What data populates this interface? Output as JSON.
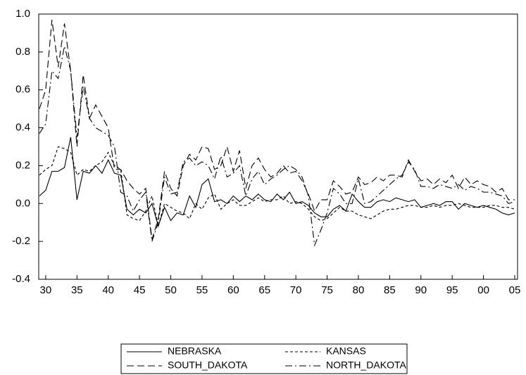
{
  "chart_data": {
    "type": "line",
    "x": [
      1929,
      1930,
      1931,
      1932,
      1933,
      1934,
      1935,
      1936,
      1937,
      1938,
      1939,
      1940,
      1941,
      1942,
      1943,
      1944,
      1945,
      1946,
      1947,
      1948,
      1949,
      1950,
      1951,
      1952,
      1953,
      1954,
      1955,
      1956,
      1957,
      1958,
      1959,
      1960,
      1961,
      1962,
      1963,
      1964,
      1965,
      1966,
      1967,
      1968,
      1969,
      1970,
      1971,
      1972,
      1973,
      1974,
      1975,
      1976,
      1977,
      1978,
      1979,
      1980,
      1981,
      1982,
      1983,
      1984,
      1985,
      1986,
      1987,
      1988,
      1989,
      1990,
      1991,
      1992,
      1993,
      1994,
      1995,
      1996,
      1997,
      1998,
      1999,
      2000,
      2001,
      2002,
      2003,
      2004,
      2005
    ],
    "series": [
      {
        "name": "NEBRASKA",
        "color": "#000000",
        "line_style": "solid",
        "values": [
          0.04,
          0.07,
          0.17,
          0.17,
          0.19,
          0.35,
          0.02,
          0.17,
          0.16,
          0.2,
          0.16,
          0.23,
          0.16,
          0.15,
          -0.03,
          -0.06,
          -0.03,
          -0.05,
          0.0,
          -0.12,
          -0.02,
          -0.09,
          -0.05,
          -0.06,
          0.04,
          -0.02,
          0.1,
          0.13,
          0.01,
          0.02,
          0.0,
          0.04,
          0.01,
          0.04,
          0.02,
          0.05,
          0.02,
          0.01,
          0.05,
          0.02,
          0.06,
          0.0,
          0.01,
          -0.01,
          -0.05,
          -0.07,
          -0.07,
          -0.03,
          -0.01,
          -0.04,
          0.05,
          0.01,
          -0.02,
          -0.02,
          0.01,
          0.02,
          0.01,
          0.03,
          0.02,
          0.01,
          0.02,
          -0.02,
          -0.01,
          0.0,
          -0.01,
          0.01,
          0.01,
          -0.03,
          0.0,
          -0.01,
          -0.02,
          -0.01,
          -0.02,
          -0.03,
          -0.05,
          -0.06,
          -0.05
        ]
      },
      {
        "name": "KANSAS",
        "color": "#000000",
        "line_style": "short-dash",
        "values": [
          0.15,
          0.18,
          0.2,
          0.3,
          0.29,
          0.27,
          0.15,
          0.18,
          0.17,
          0.2,
          0.22,
          0.27,
          0.2,
          0.18,
          -0.06,
          -0.08,
          -0.09,
          -0.04,
          0.04,
          -0.12,
          0.0,
          -0.02,
          -0.04,
          -0.05,
          -0.08,
          0.0,
          -0.03,
          0.03,
          0.05,
          -0.03,
          0.0,
          0.02,
          -0.01,
          -0.01,
          0.01,
          0.03,
          0.01,
          0.02,
          0.02,
          0.04,
          0.0,
          0.01,
          0.0,
          -0.03,
          -0.07,
          -0.09,
          -0.08,
          -0.05,
          -0.02,
          -0.04,
          -0.04,
          -0.06,
          -0.07,
          -0.08,
          -0.06,
          -0.04,
          -0.03,
          -0.03,
          -0.02,
          -0.01,
          -0.01,
          -0.02,
          -0.02,
          -0.01,
          -0.02,
          -0.01,
          -0.01,
          0.0,
          -0.01,
          -0.02,
          -0.02,
          -0.02,
          -0.01,
          -0.01,
          -0.02,
          -0.02,
          -0.03
        ]
      },
      {
        "name": "SOUTH_DAKOTA",
        "color": "#000000",
        "line_style": "long-dash",
        "values": [
          0.5,
          0.6,
          0.97,
          0.72,
          0.95,
          0.7,
          0.3,
          0.68,
          0.45,
          0.52,
          0.46,
          0.4,
          0.18,
          0.18,
          0.12,
          0.08,
          0.05,
          0.08,
          -0.19,
          -0.08,
          0.17,
          0.08,
          0.04,
          0.2,
          0.26,
          0.23,
          0.3,
          0.29,
          0.18,
          0.2,
          0.3,
          0.17,
          0.28,
          0.08,
          0.2,
          0.24,
          0.18,
          0.14,
          0.16,
          0.2,
          0.16,
          0.17,
          0.12,
          0.05,
          -0.04,
          0.02,
          0.02,
          0.12,
          0.09,
          0.05,
          0.06,
          0.14,
          0.1,
          0.11,
          0.14,
          0.12,
          0.15,
          0.15,
          0.14,
          0.23,
          0.17,
          0.12,
          0.13,
          0.1,
          0.13,
          0.11,
          0.15,
          0.08,
          0.14,
          0.1,
          0.12,
          0.1,
          0.09,
          0.06,
          0.08,
          0.02,
          0.02
        ]
      },
      {
        "name": "NORTH_DAKOTA",
        "color": "#000000",
        "line_style": "dash-dot",
        "values": [
          0.37,
          0.42,
          0.7,
          0.66,
          0.83,
          0.7,
          0.35,
          0.62,
          0.45,
          0.4,
          0.38,
          0.36,
          0.3,
          0.06,
          0.04,
          -0.04,
          0.02,
          0.06,
          -0.2,
          -0.1,
          0.14,
          0.05,
          0.06,
          0.22,
          0.24,
          0.2,
          0.22,
          0.2,
          0.13,
          0.25,
          0.14,
          0.16,
          0.2,
          0.04,
          0.13,
          0.17,
          0.1,
          0.13,
          0.15,
          0.18,
          0.2,
          0.18,
          0.14,
          0.04,
          -0.22,
          -0.14,
          -0.05,
          0.08,
          0.05,
          0.0,
          0.0,
          0.13,
          0.0,
          0.01,
          0.04,
          0.07,
          0.1,
          0.13,
          0.15,
          0.22,
          0.18,
          0.09,
          0.09,
          0.08,
          0.1,
          0.09,
          0.08,
          0.1,
          0.07,
          0.09,
          0.08,
          0.06,
          0.06,
          0.05,
          0.04,
          0.0,
          0.01
        ]
      }
    ],
    "xlim": [
      1929,
      2005
    ],
    "xticks": [
      {
        "value": 1930,
        "label": "30"
      },
      {
        "value": 1935,
        "label": "35"
      },
      {
        "value": 1940,
        "label": "40"
      },
      {
        "value": 1945,
        "label": "45"
      },
      {
        "value": 1950,
        "label": "50"
      },
      {
        "value": 1955,
        "label": "55"
      },
      {
        "value": 1960,
        "label": "60"
      },
      {
        "value": 1965,
        "label": "65"
      },
      {
        "value": 1970,
        "label": "70"
      },
      {
        "value": 1975,
        "label": "75"
      },
      {
        "value": 1980,
        "label": "80"
      },
      {
        "value": 1985,
        "label": "85"
      },
      {
        "value": 1990,
        "label": "90"
      },
      {
        "value": 1995,
        "label": "95"
      },
      {
        "value": 2000,
        "label": "00"
      },
      {
        "value": 2005,
        "label": "05"
      }
    ],
    "ylim": [
      -0.4,
      1
    ],
    "yticks": [
      -0.4,
      -0.2,
      {
        "value": 0,
        "label": "0.0"
      },
      0.2,
      0.4,
      0.6,
      0.8,
      {
        "value": 1,
        "label": "1.0"
      }
    ],
    "legend": "bottom"
  }
}
